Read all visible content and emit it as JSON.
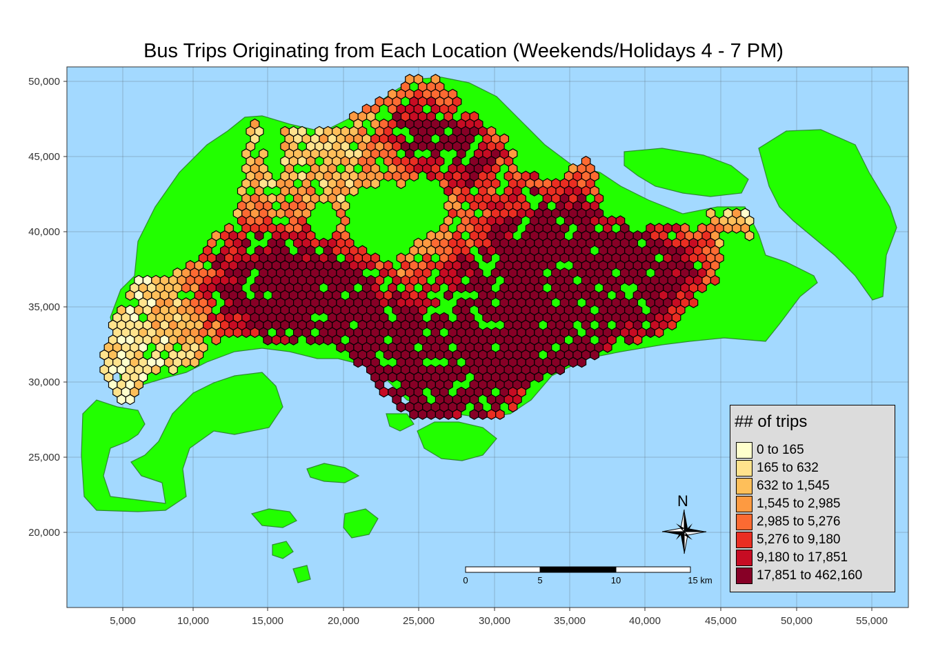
{
  "title": "Bus Trips Originating from Each Location (Weekends/Holidays 4 - 7 PM)",
  "x_axis": {
    "ticks": [
      "5,000",
      "10,000",
      "15,000",
      "20,000",
      "25,000",
      "30,000",
      "35,000",
      "40,000",
      "45,000",
      "50,000",
      "55,000"
    ]
  },
  "y_axis": {
    "ticks": [
      "50,000",
      "45,000",
      "40,000",
      "35,000",
      "30,000",
      "25,000",
      "20,000"
    ]
  },
  "legend": {
    "title": "## of trips",
    "items": [
      {
        "label": "0 to 165",
        "color": "#ffffcc"
      },
      {
        "label": "165 to 632",
        "color": "#ffe38d"
      },
      {
        "label": "632 to 1,545",
        "color": "#febf5a"
      },
      {
        "label": "1,545 to 2,985",
        "color": "#fd9a41"
      },
      {
        "label": "2,985 to 5,276",
        "color": "#fc6a32"
      },
      {
        "label": "5,276 to 9,180",
        "color": "#ea2e22"
      },
      {
        "label": "9,180 to 17,851",
        "color": "#c70c23"
      },
      {
        "label": "17,851 to 462,160",
        "color": "#870026"
      }
    ]
  },
  "north_arrow": {
    "label": "N"
  },
  "scale_bar": {
    "labels": [
      "0",
      "5",
      "10",
      "15 km"
    ]
  },
  "colors": {
    "sea": "#a3d9ff",
    "land": "#22ff00",
    "land_border": "#2e8b2e"
  }
}
